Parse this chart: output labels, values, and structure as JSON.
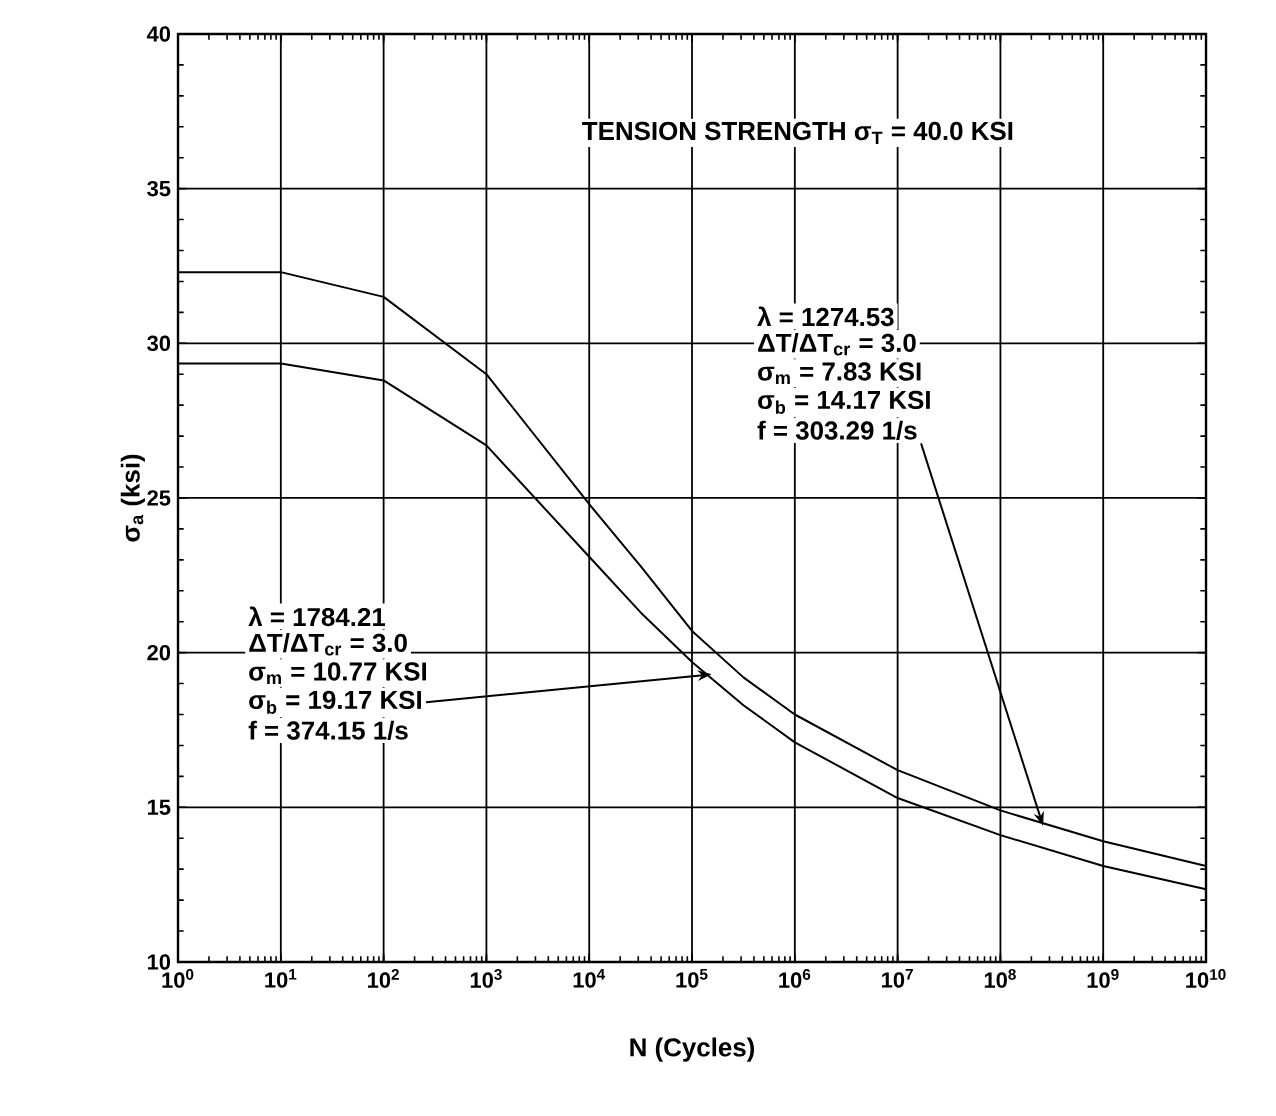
{
  "chart_data": {
    "type": "line",
    "xlabel": "N (Cycles)",
    "ylabel": "σ$_{a}$  (ksi)",
    "log": "x",
    "xlim": [
      1,
      10000000000
    ],
    "xticks": [
      {
        "value": 1,
        "label": "10$^{0}$"
      },
      {
        "value": 10,
        "label": "10$^{1}$"
      },
      {
        "value": 100,
        "label": "10$^{2}$"
      },
      {
        "value": 1000,
        "label": "10$^{3}$"
      },
      {
        "value": 10000,
        "label": "10$^{4}$"
      },
      {
        "value": 100000,
        "label": "10$^{5}$"
      },
      {
        "value": 1000000,
        "label": "10$^{6}$"
      },
      {
        "value": 10000000,
        "label": "10$^{7}$"
      },
      {
        "value": 100000000,
        "label": "10$^{8}$"
      },
      {
        "value": 1000000000,
        "label": "10$^{9}$"
      },
      {
        "value": 10000000000,
        "label": "10$^{10}$"
      }
    ],
    "ylim": [
      10,
      40
    ],
    "yticks": [
      10,
      15,
      20,
      25,
      30,
      35,
      40
    ],
    "grid": true,
    "marker": "none",
    "line_style": "solid",
    "x": [
      1,
      10,
      100,
      1000,
      10000,
      31623,
      100000,
      316228,
      1000000,
      10000000,
      100000000,
      1000000000,
      10000000000
    ],
    "series": [
      {
        "color": "#000000",
        "values": [
          32.3,
          32.3,
          31.5,
          29.0,
          24.8,
          22.8,
          20.7,
          19.2,
          18.0,
          16.2,
          14.9,
          13.9,
          13.1
        ]
      },
      {
        "color": "#000000",
        "values": [
          29.35,
          29.35,
          28.8,
          26.7,
          23.1,
          21.3,
          19.7,
          18.3,
          17.1,
          15.3,
          14.1,
          13.1,
          12.35
        ]
      }
    ],
    "annotations": [
      "TENSION STRENGTH σ$_{T}$ = 40.0 KSI",
      "λ = 1784.21",
      "ΔT/ΔT$_{cr}$ = 3.0",
      "σ$_{m}$ = 10.77 KSI",
      {
        "text": "σ$_{b}$ = 19.17 KSI",
        "x": 155000,
        "y": 19.3
      },
      "f = 374.15  1/s",
      "λ = 1274.53",
      "ΔT/ΔT$_{cr}$ = 3.0",
      "σ$_{m}$ = 7.83 KSI",
      "σ$_{b}$ = 14.17 KSI",
      {
        "text": "f = 303.29  1/s",
        "x": 260000000,
        "y": 14.4
      }
    ]
  }
}
